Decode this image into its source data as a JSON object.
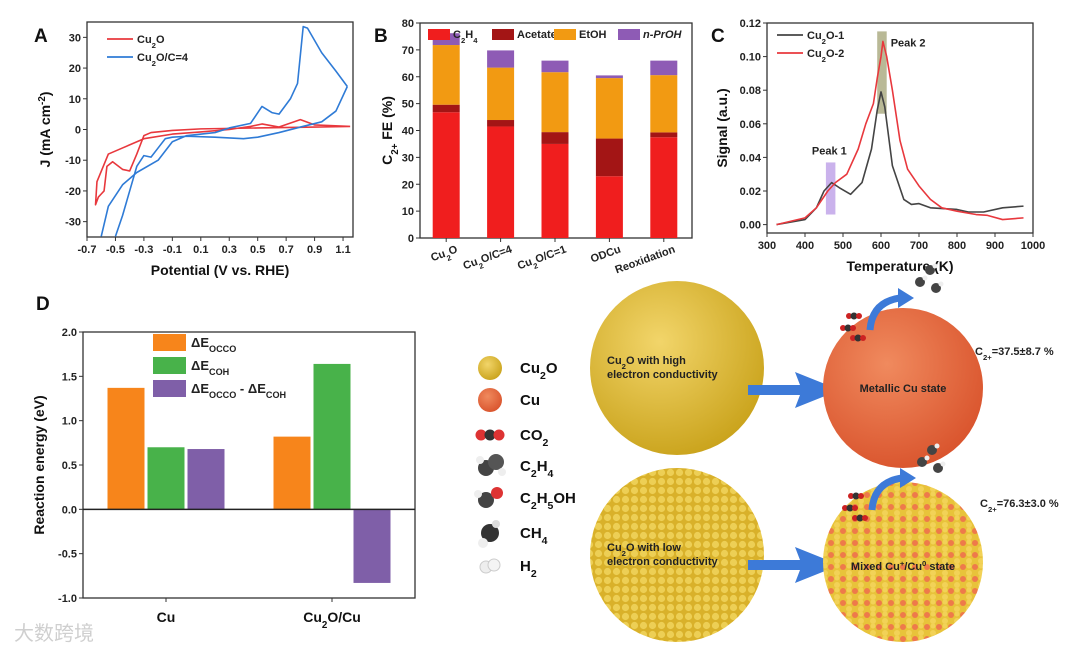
{
  "panels": {
    "a": "A",
    "b": "B",
    "c": "C",
    "d": "D"
  },
  "colors": {
    "red": "#e8383d",
    "blue": "#2f7bd6",
    "black": "#444444",
    "c2h4": "#f01e1e",
    "acetate": "#a31515",
    "etoh": "#f29a12",
    "prOH": "#8e5bb5",
    "occo": "#f7851b",
    "coh": "#48b24a",
    "diff": "#7f5fa8"
  },
  "chart_data": [
    {
      "id": "A",
      "type": "line",
      "xlabel": "Potential (V vs. RHE)",
      "ylabel": "J (mA cm^{-2})",
      "xlim": [
        -0.7,
        1.17
      ],
      "ylim": [
        -35,
        35
      ],
      "xticks": [
        -0.7,
        -0.5,
        -0.3,
        -0.1,
        0.1,
        0.3,
        0.5,
        0.7,
        0.9,
        1.1
      ],
      "yticks": [
        -30,
        -20,
        -10,
        0,
        10,
        20,
        30
      ],
      "legend": "top-left",
      "series": [
        {
          "name": "Cu_{2}O",
          "color": "#e8383d",
          "segments": [
            [
              [
                1.15,
                1
              ],
              [
                0.9,
                0.8
              ],
              [
                0.5,
                0.5
              ],
              [
                0.1,
                0.2
              ],
              [
                -0.1,
                -0.3
              ],
              [
                -0.25,
                -1
              ],
              [
                -0.3,
                -2
              ],
              [
                -0.35,
                -8
              ],
              [
                -0.4,
                -13.5
              ],
              [
                -0.45,
                -13
              ],
              [
                -0.52,
                -10.5
              ],
              [
                -0.56,
                -12
              ],
              [
                -0.58,
                -20
              ],
              [
                -0.6,
                -21
              ],
              [
                -0.62,
                -22
              ],
              [
                -0.64,
                -24.5
              ],
              [
                -0.63,
                -17
              ],
              [
                -0.55,
                -8
              ],
              [
                -0.45,
                -6
              ],
              [
                -0.3,
                -3
              ],
              [
                -0.1,
                -1.5
              ],
              [
                0.1,
                -0.8
              ],
              [
                0.3,
                0
              ],
              [
                0.45,
                1
              ],
              [
                0.53,
                1.8
              ],
              [
                0.65,
                0.8
              ],
              [
                0.8,
                3.2
              ],
              [
                0.9,
                1.5
              ],
              [
                1.15,
                1
              ]
            ]
          ]
        },
        {
          "name": "Cu_{2}O/C=4",
          "color": "#2f7bd6",
          "segments": [
            [
              [
                1.13,
                14
              ],
              [
                1.05,
                6
              ],
              [
                0.95,
                2.5
              ],
              [
                0.8,
                0.8
              ],
              [
                0.65,
                -1
              ],
              [
                0.5,
                -2.5
              ],
              [
                0.4,
                -3
              ],
              [
                0.2,
                -2.5
              ],
              [
                0,
                -2.2
              ],
              [
                -0.1,
                -2.5
              ],
              [
                -0.15,
                -3
              ],
              [
                -0.2,
                -6
              ],
              [
                -0.25,
                -9
              ],
              [
                -0.3,
                -8.5
              ],
              [
                -0.35,
                -12
              ],
              [
                -0.4,
                -20
              ],
              [
                -0.45,
                -28
              ],
              [
                -0.5,
                -34.8
              ]
            ],
            [
              [
                -0.6,
                -34.8
              ],
              [
                -0.55,
                -25
              ],
              [
                -0.45,
                -18
              ],
              [
                -0.35,
                -14
              ],
              [
                -0.2,
                -10
              ],
              [
                -0.1,
                -4
              ],
              [
                0,
                -2
              ],
              [
                0.2,
                -1
              ],
              [
                0.3,
                0.5
              ],
              [
                0.45,
                2
              ],
              [
                0.53,
                7.5
              ],
              [
                0.6,
                5.5
              ],
              [
                0.65,
                5
              ],
              [
                0.73,
                10
              ],
              [
                0.78,
                15
              ],
              [
                0.82,
                33.5
              ],
              [
                0.85,
                33
              ],
              [
                0.95,
                25
              ],
              [
                1.05,
                19
              ],
              [
                1.13,
                14
              ]
            ]
          ]
        }
      ]
    },
    {
      "id": "B",
      "type": "bar",
      "stacked": true,
      "xlabel": "",
      "ylabel": "C_{2+} FE (%)",
      "ylim": [
        0,
        80
      ],
      "yticks": [
        0,
        10,
        20,
        30,
        40,
        50,
        60,
        70,
        80
      ],
      "categories": [
        "Cu_{2}O",
        "Cu_{2}O/C=4",
        "Cu_{2}O/C=1",
        "ODCu",
        "Reoxidation"
      ],
      "legend": "top",
      "series": [
        {
          "name": "C_{2}H_{4}",
          "color": "#f01e1e",
          "values": [
            46.8,
            41.5,
            35.0,
            23.0,
            37.5
          ]
        },
        {
          "name": "Acetate",
          "color": "#a31515",
          "values": [
            2.8,
            2.4,
            4.4,
            14.0,
            1.8
          ]
        },
        {
          "name": "EtOH",
          "color": "#f29a12",
          "values": [
            22.2,
            19.5,
            22.3,
            22.5,
            21.3
          ]
        },
        {
          "name": "n-PrOH",
          "color": "#8e5bb5",
          "values": [
            4.4,
            6.4,
            4.3,
            1.0,
            5.4
          ]
        }
      ]
    },
    {
      "id": "C",
      "type": "line",
      "xlabel": "Temperature (K)",
      "ylabel": "Signal (a.u.)",
      "xlim": [
        300,
        1000
      ],
      "ylim": [
        -0.005,
        0.12
      ],
      "xticks": [
        300,
        400,
        500,
        600,
        700,
        800,
        900,
        1000
      ],
      "yticks": [
        0.0,
        0.02,
        0.04,
        0.06,
        0.08,
        0.1,
        0.12
      ],
      "legend": "top-left",
      "regions": [
        {
          "label": "Peak 1",
          "x": [
            455,
            480
          ],
          "y": [
            0.006,
            0.037
          ],
          "color": "#a77fe0"
        },
        {
          "label": "Peak 2",
          "x": [
            590,
            615
          ],
          "y": [
            0.066,
            0.115
          ],
          "color": "#8a8a50"
        }
      ],
      "series": [
        {
          "name": "Cu_{2}O-1",
          "color": "#444444",
          "segments": [
            [
              [
                325,
                0
              ],
              [
                400,
                0.003
              ],
              [
                430,
                0.01
              ],
              [
                450,
                0.02
              ],
              [
                470,
                0.025
              ],
              [
                490,
                0.022
              ],
              [
                520,
                0.018
              ],
              [
                550,
                0.025
              ],
              [
                575,
                0.045
              ],
              [
                590,
                0.068
              ],
              [
                600,
                0.079
              ],
              [
                610,
                0.07
              ],
              [
                630,
                0.035
              ],
              [
                660,
                0.015
              ],
              [
                680,
                0.012
              ],
              [
                700,
                0.0125
              ],
              [
                730,
                0.01
              ],
              [
                800,
                0.009
              ],
              [
                830,
                0.0075
              ],
              [
                870,
                0.0075
              ],
              [
                920,
                0.01
              ],
              [
                975,
                0.011
              ]
            ]
          ]
        },
        {
          "name": "Cu_{2}O-2",
          "color": "#e8383d",
          "segments": [
            [
              [
                325,
                0
              ],
              [
                400,
                0.004
              ],
              [
                430,
                0.01
              ],
              [
                460,
                0.02
              ],
              [
                480,
                0.025
              ],
              [
                510,
                0.03
              ],
              [
                540,
                0.045
              ],
              [
                560,
                0.06
              ],
              [
                580,
                0.072
              ],
              [
                590,
                0.087
              ],
              [
                600,
                0.1
              ],
              [
                605,
                0.109
              ],
              [
                615,
                0.1
              ],
              [
                630,
                0.08
              ],
              [
                650,
                0.05
              ],
              [
                670,
                0.033
              ],
              [
                700,
                0.023
              ],
              [
                730,
                0.015
              ],
              [
                760,
                0.01
              ],
              [
                800,
                0.008
              ],
              [
                850,
                0.006
              ],
              [
                880,
                0.0055
              ],
              [
                920,
                0.003
              ],
              [
                975,
                0.004
              ]
            ]
          ]
        }
      ]
    },
    {
      "id": "D",
      "type": "bar",
      "stacked": false,
      "xlabel": "",
      "ylabel": "Reaction energy (eV)",
      "ylim": [
        -1.0,
        2.0
      ],
      "yticks": [
        -1.0,
        -0.5,
        0.0,
        0.5,
        1.0,
        1.5,
        2.0
      ],
      "categories": [
        "Cu",
        "Cu_{2}O/Cu"
      ],
      "legend": "top-center",
      "series": [
        {
          "name": "ΔE_{OCCO}",
          "color": "#f7851b",
          "values": [
            1.37,
            0.82
          ]
        },
        {
          "name": "ΔE_{COH}",
          "color": "#48b24a",
          "values": [
            0.7,
            1.64
          ]
        },
        {
          "name": "ΔE_{OCCO} - ΔE_{COH}",
          "color": "#7f5fa8",
          "values": [
            0.68,
            -0.83
          ]
        }
      ]
    }
  ],
  "schematic": {
    "legend": [
      {
        "label": "Cu_{2}O",
        "icon": "cu2o-sphere-icon"
      },
      {
        "label": "Cu",
        "icon": "cu-sphere-icon"
      },
      {
        "label": "CO_{2}",
        "icon": "co2-molecule-icon"
      },
      {
        "label": "C_{2}H_{4}",
        "icon": "c2h4-molecule-icon"
      },
      {
        "label": "C_{2}H_{5}OH",
        "icon": "c2h5oh-molecule-icon"
      },
      {
        "label": "CH_{4}",
        "icon": "ch4-molecule-icon"
      },
      {
        "label": "H_{2}",
        "icon": "h2-molecule-icon"
      }
    ],
    "top_particle": "Cu_{2}O with high|electron conductivity",
    "top_result": "Metallic Cu state",
    "top_fe": "C_{2+}=37.5±8.7 %",
    "bottom_particle": "Cu_{2}O with low|electron conductivity",
    "bottom_result": "Mixed Cu^{+}/Cu^{0} state",
    "bottom_fe": "C_{2+}=76.3±3.0 %"
  },
  "watermark": "大数跨境"
}
